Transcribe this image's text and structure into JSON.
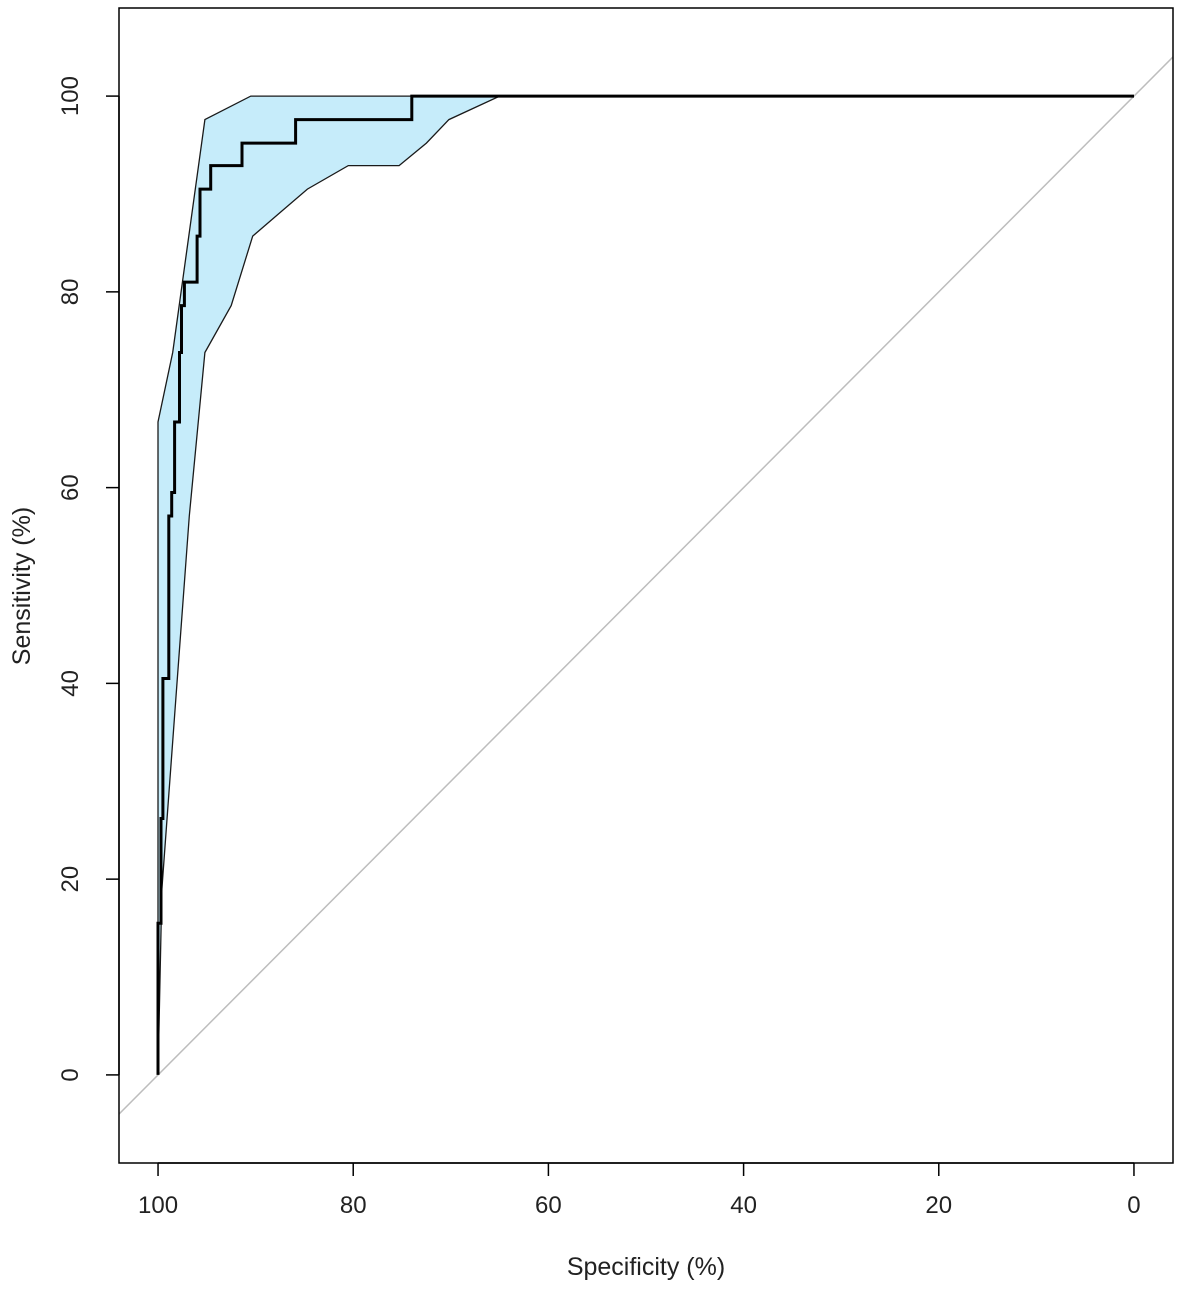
{
  "colors": {
    "background": "#ffffff",
    "frame": "#000000",
    "ci_fill": "#c6ecfa",
    "ci_border": "#1a1a1a",
    "roc_line": "#000000",
    "diagonal": "#bdbdbd",
    "text": "#222222"
  },
  "chart_data": {
    "type": "line",
    "title": "",
    "xlabel": "Specificity (%)",
    "ylabel": "Sensitivity (%)",
    "xlim": [
      104,
      -4
    ],
    "ylim": [
      -9,
      109
    ],
    "x_reversed": true,
    "xticks": [
      100,
      80,
      60,
      40,
      20,
      0
    ],
    "yticks": [
      0,
      20,
      40,
      60,
      80,
      100
    ],
    "xtick_labels": [
      "100",
      "80",
      "60",
      "40",
      "20",
      "0"
    ],
    "ytick_labels": [
      "0",
      "20",
      "40",
      "60",
      "80",
      "100"
    ],
    "grid": false,
    "legend": "none",
    "series": [
      {
        "role": "roc",
        "points": [
          [
            100,
            0
          ],
          [
            100,
            15.5
          ],
          [
            99.7,
            15.5
          ],
          [
            99.7,
            26.2
          ],
          [
            99.5,
            26.2
          ],
          [
            99.5,
            40.5
          ],
          [
            98.9,
            40.5
          ],
          [
            98.9,
            57.1
          ],
          [
            98.6,
            57.1
          ],
          [
            98.6,
            59.5
          ],
          [
            98.3,
            59.5
          ],
          [
            98.3,
            66.7
          ],
          [
            97.8,
            66.7
          ],
          [
            97.8,
            73.8
          ],
          [
            97.6,
            73.8
          ],
          [
            97.6,
            78.6
          ],
          [
            97.3,
            78.6
          ],
          [
            97.3,
            81.0
          ],
          [
            96.0,
            81.0
          ],
          [
            96.0,
            85.7
          ],
          [
            95.7,
            85.7
          ],
          [
            95.7,
            90.5
          ],
          [
            94.6,
            90.5
          ],
          [
            94.6,
            92.9
          ],
          [
            91.4,
            92.9
          ],
          [
            91.4,
            95.2
          ],
          [
            85.9,
            95.2
          ],
          [
            85.9,
            97.6
          ],
          [
            74.0,
            97.6
          ],
          [
            74.0,
            100
          ],
          [
            0,
            100
          ]
        ]
      },
      {
        "role": "ci_upper",
        "points": [
          [
            100,
            0
          ],
          [
            100,
            66.7
          ],
          [
            98.5,
            73.8
          ],
          [
            95.2,
            97.6
          ],
          [
            90.5,
            100
          ],
          [
            0,
            100
          ]
        ]
      },
      {
        "role": "ci_lower",
        "points": [
          [
            100,
            0
          ],
          [
            99.6,
            19.0
          ],
          [
            98.2,
            38.1
          ],
          [
            96.8,
            57.1
          ],
          [
            95.2,
            73.8
          ],
          [
            92.5,
            78.6
          ],
          [
            90.3,
            85.7
          ],
          [
            87.5,
            88.1
          ],
          [
            84.7,
            90.5
          ],
          [
            80.5,
            92.9
          ],
          [
            75.3,
            92.9
          ],
          [
            72.5,
            95.2
          ],
          [
            70.2,
            97.6
          ],
          [
            65.0,
            100
          ],
          [
            0,
            100
          ]
        ]
      },
      {
        "role": "reference_diagonal",
        "points": [
          [
            104,
            -4
          ],
          [
            -4,
            104
          ]
        ]
      }
    ]
  }
}
